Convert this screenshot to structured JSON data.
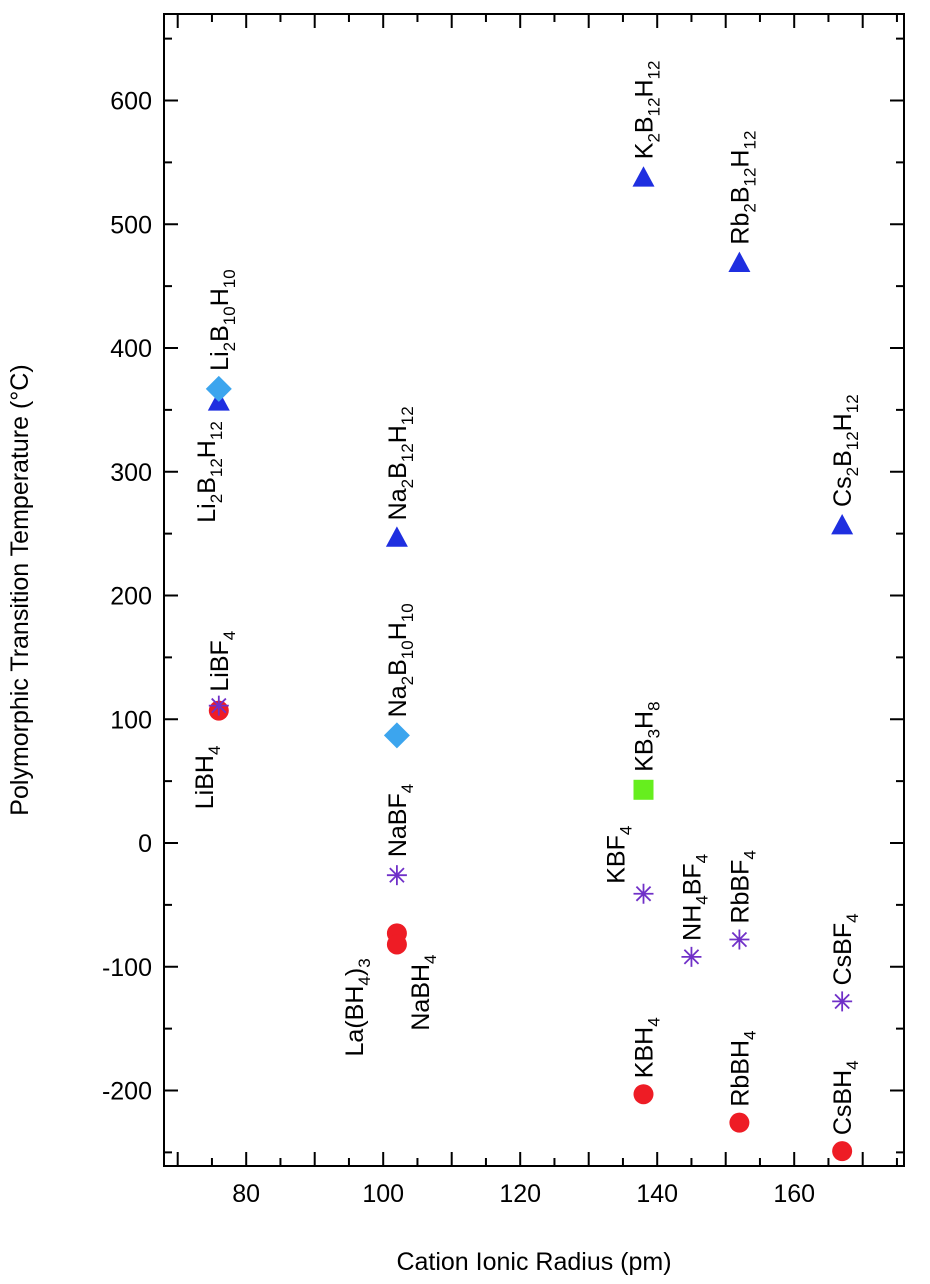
{
  "chart_data": {
    "type": "scatter",
    "xlabel": "Cation Ionic Radius (pm)",
    "ylabel": "Polymorphic Transition Temperature (°C)",
    "xlim": [
      68,
      176
    ],
    "ylim": [
      -260,
      660
    ],
    "x_ticks": [
      80,
      100,
      120,
      140,
      160
    ],
    "y_ticks": [
      -200,
      -100,
      0,
      100,
      200,
      300,
      400,
      500,
      600
    ],
    "grid": false,
    "legend": "none",
    "series": [
      {
        "marker": "circle",
        "color": "#ee1c25",
        "points": [
          {
            "x": 76,
            "y": 107,
            "label": [
              "LiBH",
              {
                "sub": "4"
              }
            ]
          },
          {
            "x": 102,
            "y": -73,
            "label": [
              "La(BH",
              {
                "sub": "4"
              },
              ")",
              {
                "sub": "3"
              }
            ]
          },
          {
            "x": 102,
            "y": -82,
            "label": [
              "NaBH",
              {
                "sub": "4"
              }
            ]
          },
          {
            "x": 138,
            "y": -203,
            "label": [
              "KBH",
              {
                "sub": "4"
              }
            ]
          },
          {
            "x": 152,
            "y": -226,
            "label": [
              "RbBH",
              {
                "sub": "4"
              }
            ]
          },
          {
            "x": 167,
            "y": -249,
            "label": [
              "CsBH",
              {
                "sub": "4"
              }
            ]
          }
        ]
      },
      {
        "marker": "asterisk",
        "color": "#7030c8",
        "points": [
          {
            "x": 76,
            "y": 111,
            "label": [
              "LiBF",
              {
                "sub": "4"
              }
            ]
          },
          {
            "x": 102,
            "y": -26,
            "label": [
              "NaBF",
              {
                "sub": "4"
              }
            ]
          },
          {
            "x": 138,
            "y": -41,
            "label": [
              "KBF",
              {
                "sub": "4"
              }
            ]
          },
          {
            "x": 145,
            "y": -92,
            "label": [
              "NH",
              {
                "sub": "4"
              },
              "BF",
              {
                "sub": "4"
              }
            ]
          },
          {
            "x": 152,
            "y": -78,
            "label": [
              "RbBF",
              {
                "sub": "4"
              }
            ]
          },
          {
            "x": 167,
            "y": -128,
            "label": [
              "CsBF",
              {
                "sub": "4"
              }
            ]
          }
        ]
      },
      {
        "marker": "triangle",
        "color": "#1f2fe0",
        "points": [
          {
            "x": 76,
            "y": 357,
            "label": [
              "Li",
              {
                "sub": "2"
              },
              "B",
              {
                "sub": "12"
              },
              "H",
              {
                "sub": "12"
              }
            ]
          },
          {
            "x": 102,
            "y": 247,
            "label": [
              "Na",
              {
                "sub": "2"
              },
              "B",
              {
                "sub": "12"
              },
              "H",
              {
                "sub": "12"
              }
            ]
          },
          {
            "x": 138,
            "y": 538,
            "label": [
              "K",
              {
                "sub": "2"
              },
              "B",
              {
                "sub": "12"
              },
              "H",
              {
                "sub": "12"
              }
            ]
          },
          {
            "x": 152,
            "y": 469,
            "label": [
              "Rb",
              {
                "sub": "2"
              },
              "B",
              {
                "sub": "12"
              },
              "H",
              {
                "sub": "12"
              }
            ]
          },
          {
            "x": 167,
            "y": 257,
            "label": [
              "Cs",
              {
                "sub": "2"
              },
              "B",
              {
                "sub": "12"
              },
              "H",
              {
                "sub": "12"
              }
            ]
          }
        ]
      },
      {
        "marker": "diamond",
        "color": "#3ca5ee",
        "points": [
          {
            "x": 76,
            "y": 367,
            "label": [
              "Li",
              {
                "sub": "2"
              },
              "B",
              {
                "sub": "10"
              },
              "H",
              {
                "sub": "10"
              }
            ]
          },
          {
            "x": 102,
            "y": 87,
            "label": [
              "Na",
              {
                "sub": "2"
              },
              "B",
              {
                "sub": "10"
              },
              "H",
              {
                "sub": "10"
              }
            ]
          }
        ]
      },
      {
        "marker": "square",
        "color": "#66ee1e",
        "points": [
          {
            "x": 138,
            "y": 43,
            "label": [
              "KB",
              {
                "sub": "3"
              },
              "H",
              {
                "sub": "8"
              }
            ]
          }
        ]
      }
    ]
  }
}
